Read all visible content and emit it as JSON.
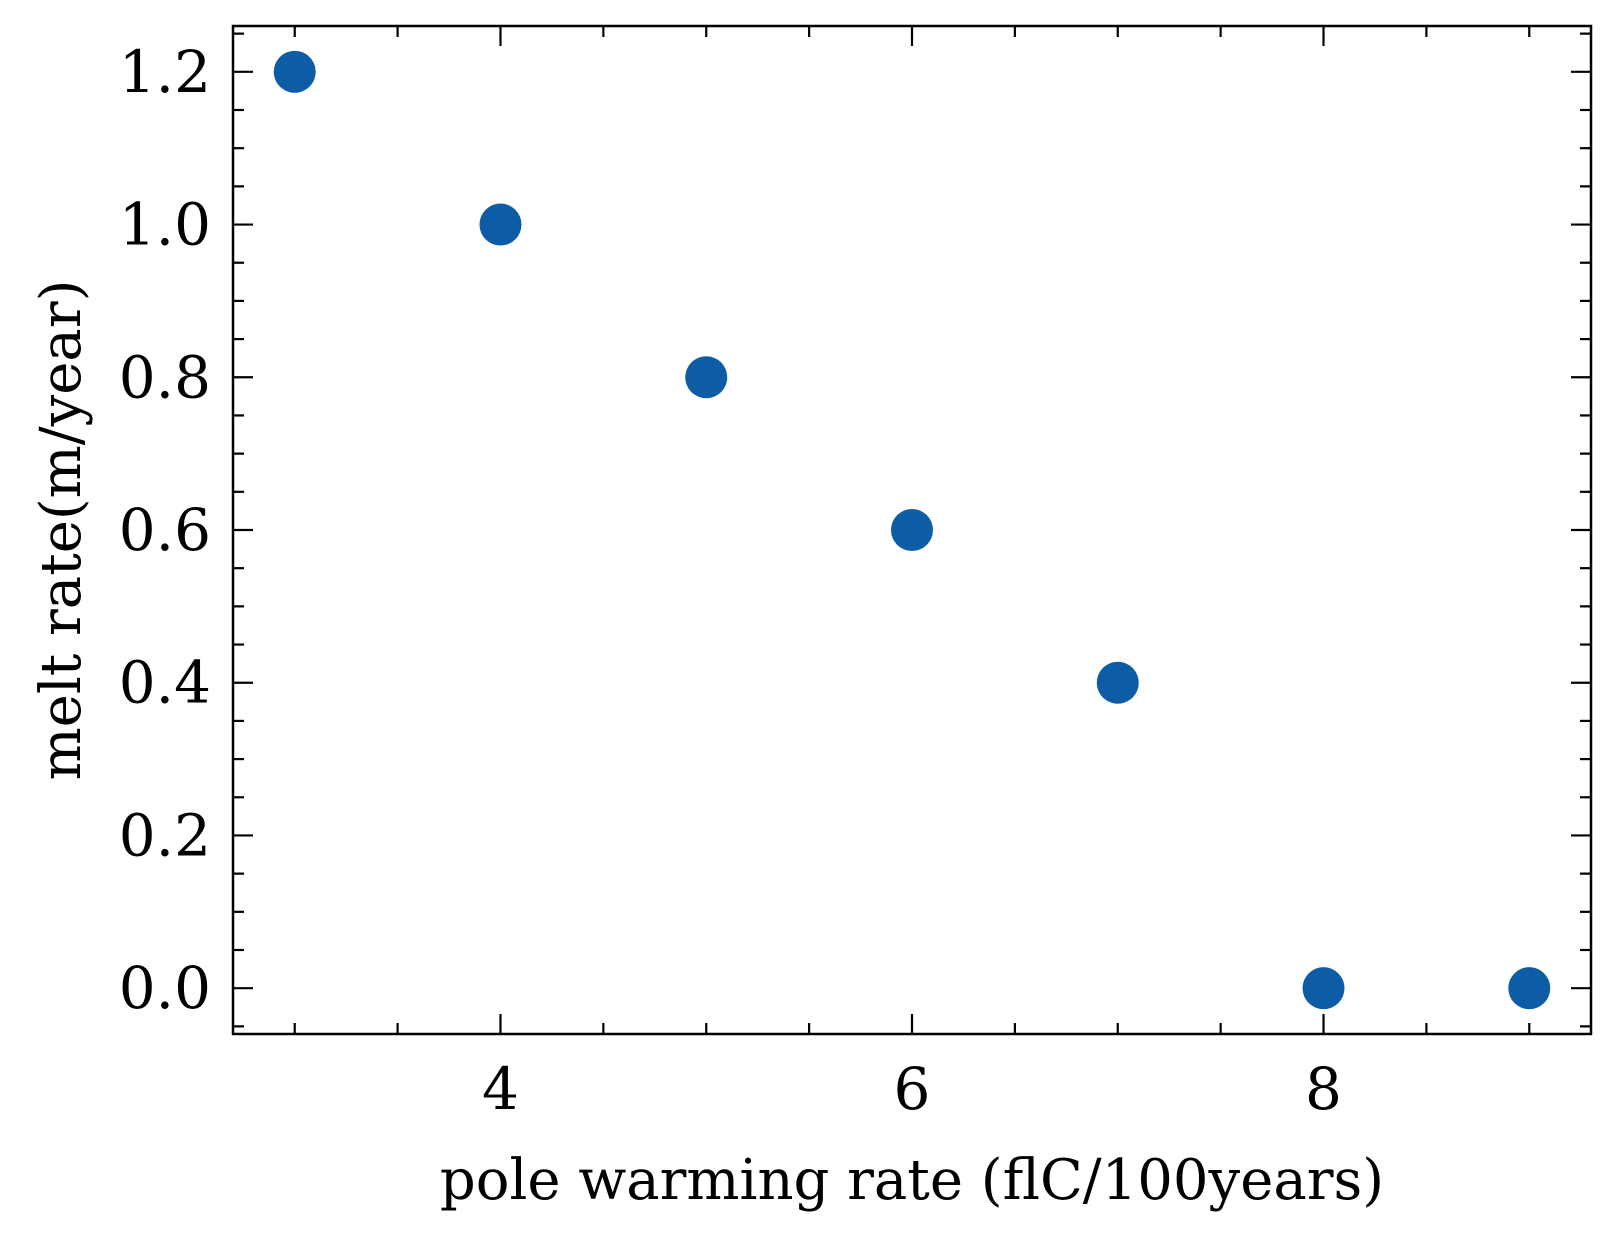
{
  "chart_data": {
    "type": "scatter",
    "title": "",
    "xlabel": "pole warming rate (ﬂC/100years)",
    "ylabel": "melt rate(m/year)",
    "xlim": [
      2.7,
      9.3
    ],
    "ylim": [
      -0.06,
      1.26
    ],
    "x_ticks": [
      4,
      6,
      8
    ],
    "x_tick_labels": [
      "4",
      "6",
      "8"
    ],
    "x_minor_ticks": [
      3,
      3.5,
      4.5,
      5,
      5.5,
      6.5,
      7,
      7.5,
      8.5,
      9
    ],
    "y_ticks": [
      0.0,
      0.2,
      0.4,
      0.6,
      0.8,
      1.0,
      1.2
    ],
    "y_tick_labels": [
      "0.0",
      "0.2",
      "0.4",
      "0.6",
      "0.8",
      "1.0",
      "1.2"
    ],
    "y_minor_tick_step": 0.05,
    "grid": false,
    "legend": "none",
    "marker_color": "#0c5da5",
    "series": [
      {
        "x": [
          3,
          4,
          5,
          6,
          7,
          8,
          9
        ],
        "y": [
          1.2,
          1.0,
          0.8,
          0.6,
          0.4,
          0.0,
          0.0
        ]
      }
    ]
  }
}
